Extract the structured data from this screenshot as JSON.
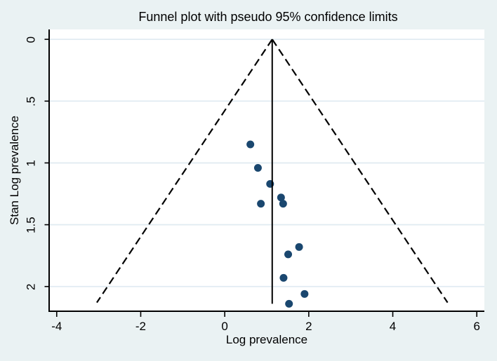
{
  "chart_data": {
    "type": "scatter",
    "title": "Funnel plot with pseudo 95% confidence limits",
    "xlabel": "Log prevalence",
    "ylabel": "Stan Log prevalence",
    "x_tick_labels": [
      "-4",
      "-2",
      "0",
      "2",
      "4",
      "6"
    ],
    "x_tick_values": [
      -4,
      -2,
      0,
      2,
      4,
      6
    ],
    "y_tick_labels": [
      "0",
      ".5",
      "1",
      "1.5",
      "2"
    ],
    "y_tick_values": [
      0,
      0.5,
      1,
      1.5,
      2
    ],
    "xlim": [
      -4.18,
      6.18
    ],
    "ylim": [
      -0.08,
      2.2
    ],
    "y_axis_reversed": true,
    "grid": "horizontal",
    "legend": "none",
    "points": [
      {
        "x": 0.61,
        "y": 0.85
      },
      {
        "x": 0.79,
        "y": 1.04
      },
      {
        "x": 1.08,
        "y": 1.17
      },
      {
        "x": 1.34,
        "y": 1.28
      },
      {
        "x": 1.39,
        "y": 1.33
      },
      {
        "x": 0.86,
        "y": 1.33
      },
      {
        "x": 1.77,
        "y": 1.68
      },
      {
        "x": 1.51,
        "y": 1.74
      },
      {
        "x": 1.4,
        "y": 1.93
      },
      {
        "x": 1.9,
        "y": 2.06
      },
      {
        "x": 1.53,
        "y": 2.14
      }
    ],
    "center_line": {
      "x": 1.13,
      "y_from": 0,
      "y_to": 2.14,
      "style": "solid"
    },
    "funnel": {
      "apex_x": 1.13,
      "apex_y": 0,
      "base_y": 2.13,
      "half_width_multiplier": 1.96,
      "style": "dashed"
    },
    "colors": {
      "background": "#eaf2f3",
      "plot_background": "#ffffff",
      "gridline": "#e1ebf2",
      "axis": "#000000",
      "marker": "#1a476f",
      "line": "#000000"
    }
  }
}
